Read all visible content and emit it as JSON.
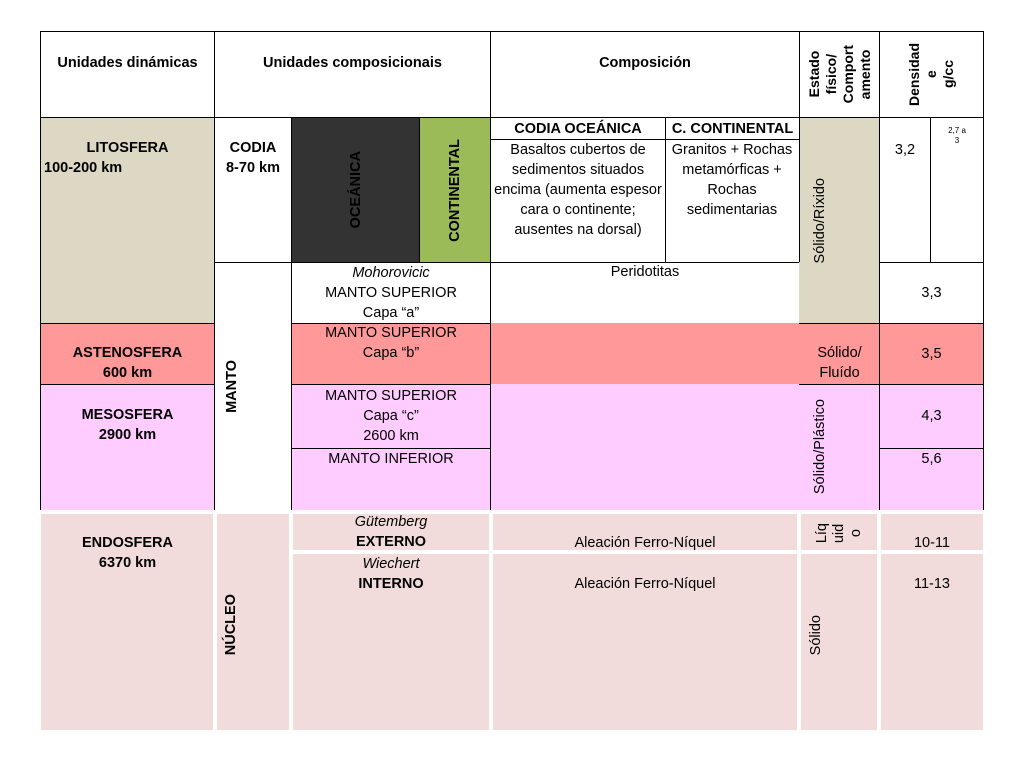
{
  "colors": {
    "litosfera": "#ddd8c4",
    "oceanica": "#333333",
    "continental": "#9bbb59",
    "astenosfera": "#ff9999",
    "mesosfera": "#ffccff",
    "endosfera": "#f2dcdb",
    "estado_top": "#ddd8c4"
  },
  "header": {
    "dinamicas": "Unidades dinámicas",
    "composicionais": "Unidades composicionais",
    "composicion": "Composición",
    "estado_l1": "Estado",
    "estado_l2": "físico/",
    "estado_l3": "Comport",
    "estado_l4": "amento",
    "densidade_l1": "Densidad",
    "densidade_l2": "e",
    "densidade_l3": "g/cc"
  },
  "litosfera": {
    "name": "LITOSFERA",
    "depth": "100-200 km",
    "codia": "CODIA",
    "codia_depth": "8-70 km",
    "oceanica": "OCEÁNICA",
    "continental": "CONTINENTAL",
    "codia_oceanica_title": "CODIA OCEÁNICA",
    "codia_oceanica_text": "Basaltos cubertos de sedimentos situados encima (aumenta espesor cara o continente; ausentes na dorsal)",
    "codia_continental_title": "C. CONTINENTAL",
    "codia_continental_text": "Granitos + Rochas metamórficas + Rochas sedimentarias",
    "estado": "Sólido/Ríxido",
    "density_oceanic": "3,2",
    "density_continental_l1": "2,7 a",
    "density_continental_l2": "3"
  },
  "manto": {
    "label": "MANTO",
    "moho_l1": "Mohorovicic",
    "moho_l2": "MANTO SUPERIOR",
    "moho_l3": "Capa “a”",
    "peridotitas": "Peridotitas",
    "density_a": "3,3"
  },
  "astenosfera": {
    "name": "ASTENOSFERA",
    "depth": "600 km",
    "capa_l1": "MANTO SUPERIOR",
    "capa_l2": "Capa “b”",
    "estado_l1": "Sólido/",
    "estado_l2": "Fluído",
    "density": "3,5"
  },
  "mesosfera": {
    "name": "MESOSFERA",
    "depth": "2900 km",
    "capa_l1": "MANTO SUPERIOR",
    "capa_l2": "Capa “c”",
    "capa_l3": "2600 km",
    "density_c": "4,3",
    "inferior": "MANTO INFERIOR",
    "density_inferior": "5,6",
    "estado": "Sólido/Plástico"
  },
  "endosfera": {
    "name": "ENDOSFERA",
    "depth": "6370 km",
    "nucleo": "NÚCLEO",
    "externo_l1": "Gütemberg",
    "externo_l2": "EXTERNO",
    "externo_comp": "Aleación Ferro-Níquel",
    "externo_estado_l1": "Líq",
    "externo_estado_l2": "uid",
    "externo_estado_l3": "o",
    "externo_density": "10-11",
    "interno_l1": "Wiechert",
    "interno_l2": "INTERNO",
    "interno_comp": "Aleación Ferro-Níquel",
    "interno_estado": "Sólido",
    "interno_density": "11-13"
  }
}
